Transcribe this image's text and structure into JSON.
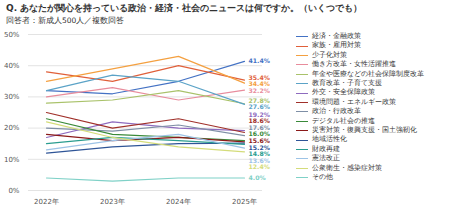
{
  "chart_data": {
    "type": "line",
    "title": "Q. あなたが関心を持っている政治・経済・社会のニュースは何ですか。（いくつでも）",
    "subtitle": "回答者：新成人500人／複数回答",
    "categories": [
      "2022年",
      "2023年",
      "2024年",
      "2025年"
    ],
    "ylim": [
      0,
      50
    ],
    "yticks": [
      {
        "value": 0,
        "label": "0%"
      },
      {
        "value": 10,
        "label": "10%"
      },
      {
        "value": 20,
        "label": "20%"
      },
      {
        "value": 30,
        "label": "30%"
      },
      {
        "value": 40,
        "label": "40%"
      },
      {
        "value": 50,
        "label": "50%"
      }
    ],
    "grid": true,
    "legend": "right",
    "data_labels": true,
    "series": [
      {
        "name": "経済・金融政策",
        "color": "#4472c4",
        "values": [
          32,
          31,
          35,
          41.4
        ],
        "value_labels": [
          null,
          null,
          null,
          "41.4%"
        ]
      },
      {
        "name": "家族・雇用対策",
        "color": "#e0603a",
        "values": [
          38,
          35,
          40,
          35.4
        ],
        "value_labels": [
          null,
          null,
          null,
          "35.4%"
        ]
      },
      {
        "name": "少子化対策",
        "color": "#f4a040",
        "values": [
          35,
          39,
          43,
          34.4
        ],
        "value_labels": [
          null,
          null,
          null,
          "34.4%"
        ]
      },
      {
        "name": "働き方改革・女性活躍推進",
        "color": "#e88c9c",
        "values": [
          30,
          33,
          29,
          32.2
        ],
        "value_labels": [
          null,
          null,
          null,
          "32.2%"
        ]
      },
      {
        "name": "年金や医療などの社会保障制度改革",
        "color": "#a9c26a",
        "values": [
          28,
          29,
          32,
          27.8
        ],
        "value_labels": [
          null,
          null,
          null,
          "27.8%"
        ]
      },
      {
        "name": "教育改革・子育て支援",
        "color": "#5ba3c7",
        "values": [
          32,
          37,
          35,
          27.6
        ],
        "value_labels": [
          null,
          null,
          null,
          "27.6%"
        ]
      },
      {
        "name": "外交・安全保障政策",
        "color": "#8e6bbf",
        "values": [
          17,
          22,
          20,
          19.2
        ],
        "value_labels": [
          null,
          null,
          null,
          "19.2%"
        ]
      },
      {
        "name": "環境問題・エネルギー政策",
        "color": "#a0302a",
        "values": [
          25,
          20,
          23,
          18.6
        ],
        "value_labels": [
          null,
          null,
          null,
          "18.6%"
        ]
      },
      {
        "name": "政治・行政改革",
        "color": "#7f8fa6",
        "values": [
          20,
          19,
          21,
          17.6
        ],
        "value_labels": [
          null,
          null,
          null,
          "17.6%"
        ]
      },
      {
        "name": "デジタル社会の推進",
        "color": "#3a8a3a",
        "values": [
          23,
          18,
          17,
          16.0
        ],
        "value_labels": [
          null,
          null,
          null,
          "16.0%"
        ]
      },
      {
        "name": "災害対策・復興支援・国土強靭化",
        "color": "#8b1a1a",
        "values": [
          18,
          16,
          17,
          15.6
        ],
        "value_labels": [
          null,
          null,
          null,
          "15.6%"
        ]
      },
      {
        "name": "地域活性化",
        "color": "#2f5597",
        "values": [
          12,
          14,
          15,
          15.2
        ],
        "value_labels": [
          null,
          null,
          null,
          "15.2%"
        ]
      },
      {
        "name": "財政再建",
        "color": "#2a9d8f",
        "values": [
          15,
          17,
          16,
          14.8
        ],
        "value_labels": [
          null,
          null,
          null,
          "14.8%"
        ]
      },
      {
        "name": "憲法改正",
        "color": "#9dc3e6",
        "values": [
          13,
          16,
          18,
          13.6
        ],
        "value_labels": [
          null,
          null,
          null,
          "13.6%"
        ]
      },
      {
        "name": "公衆衛生・感染症対策",
        "color": "#d4dc7a",
        "values": [
          22,
          17,
          14,
          12.4
        ],
        "value_labels": [
          null,
          null,
          null,
          "12.4%"
        ]
      },
      {
        "name": "その他",
        "color": "#7fd1c7",
        "values": [
          4,
          3,
          4,
          4.0
        ],
        "value_labels": [
          null,
          null,
          null,
          "4.0%"
        ]
      }
    ]
  }
}
